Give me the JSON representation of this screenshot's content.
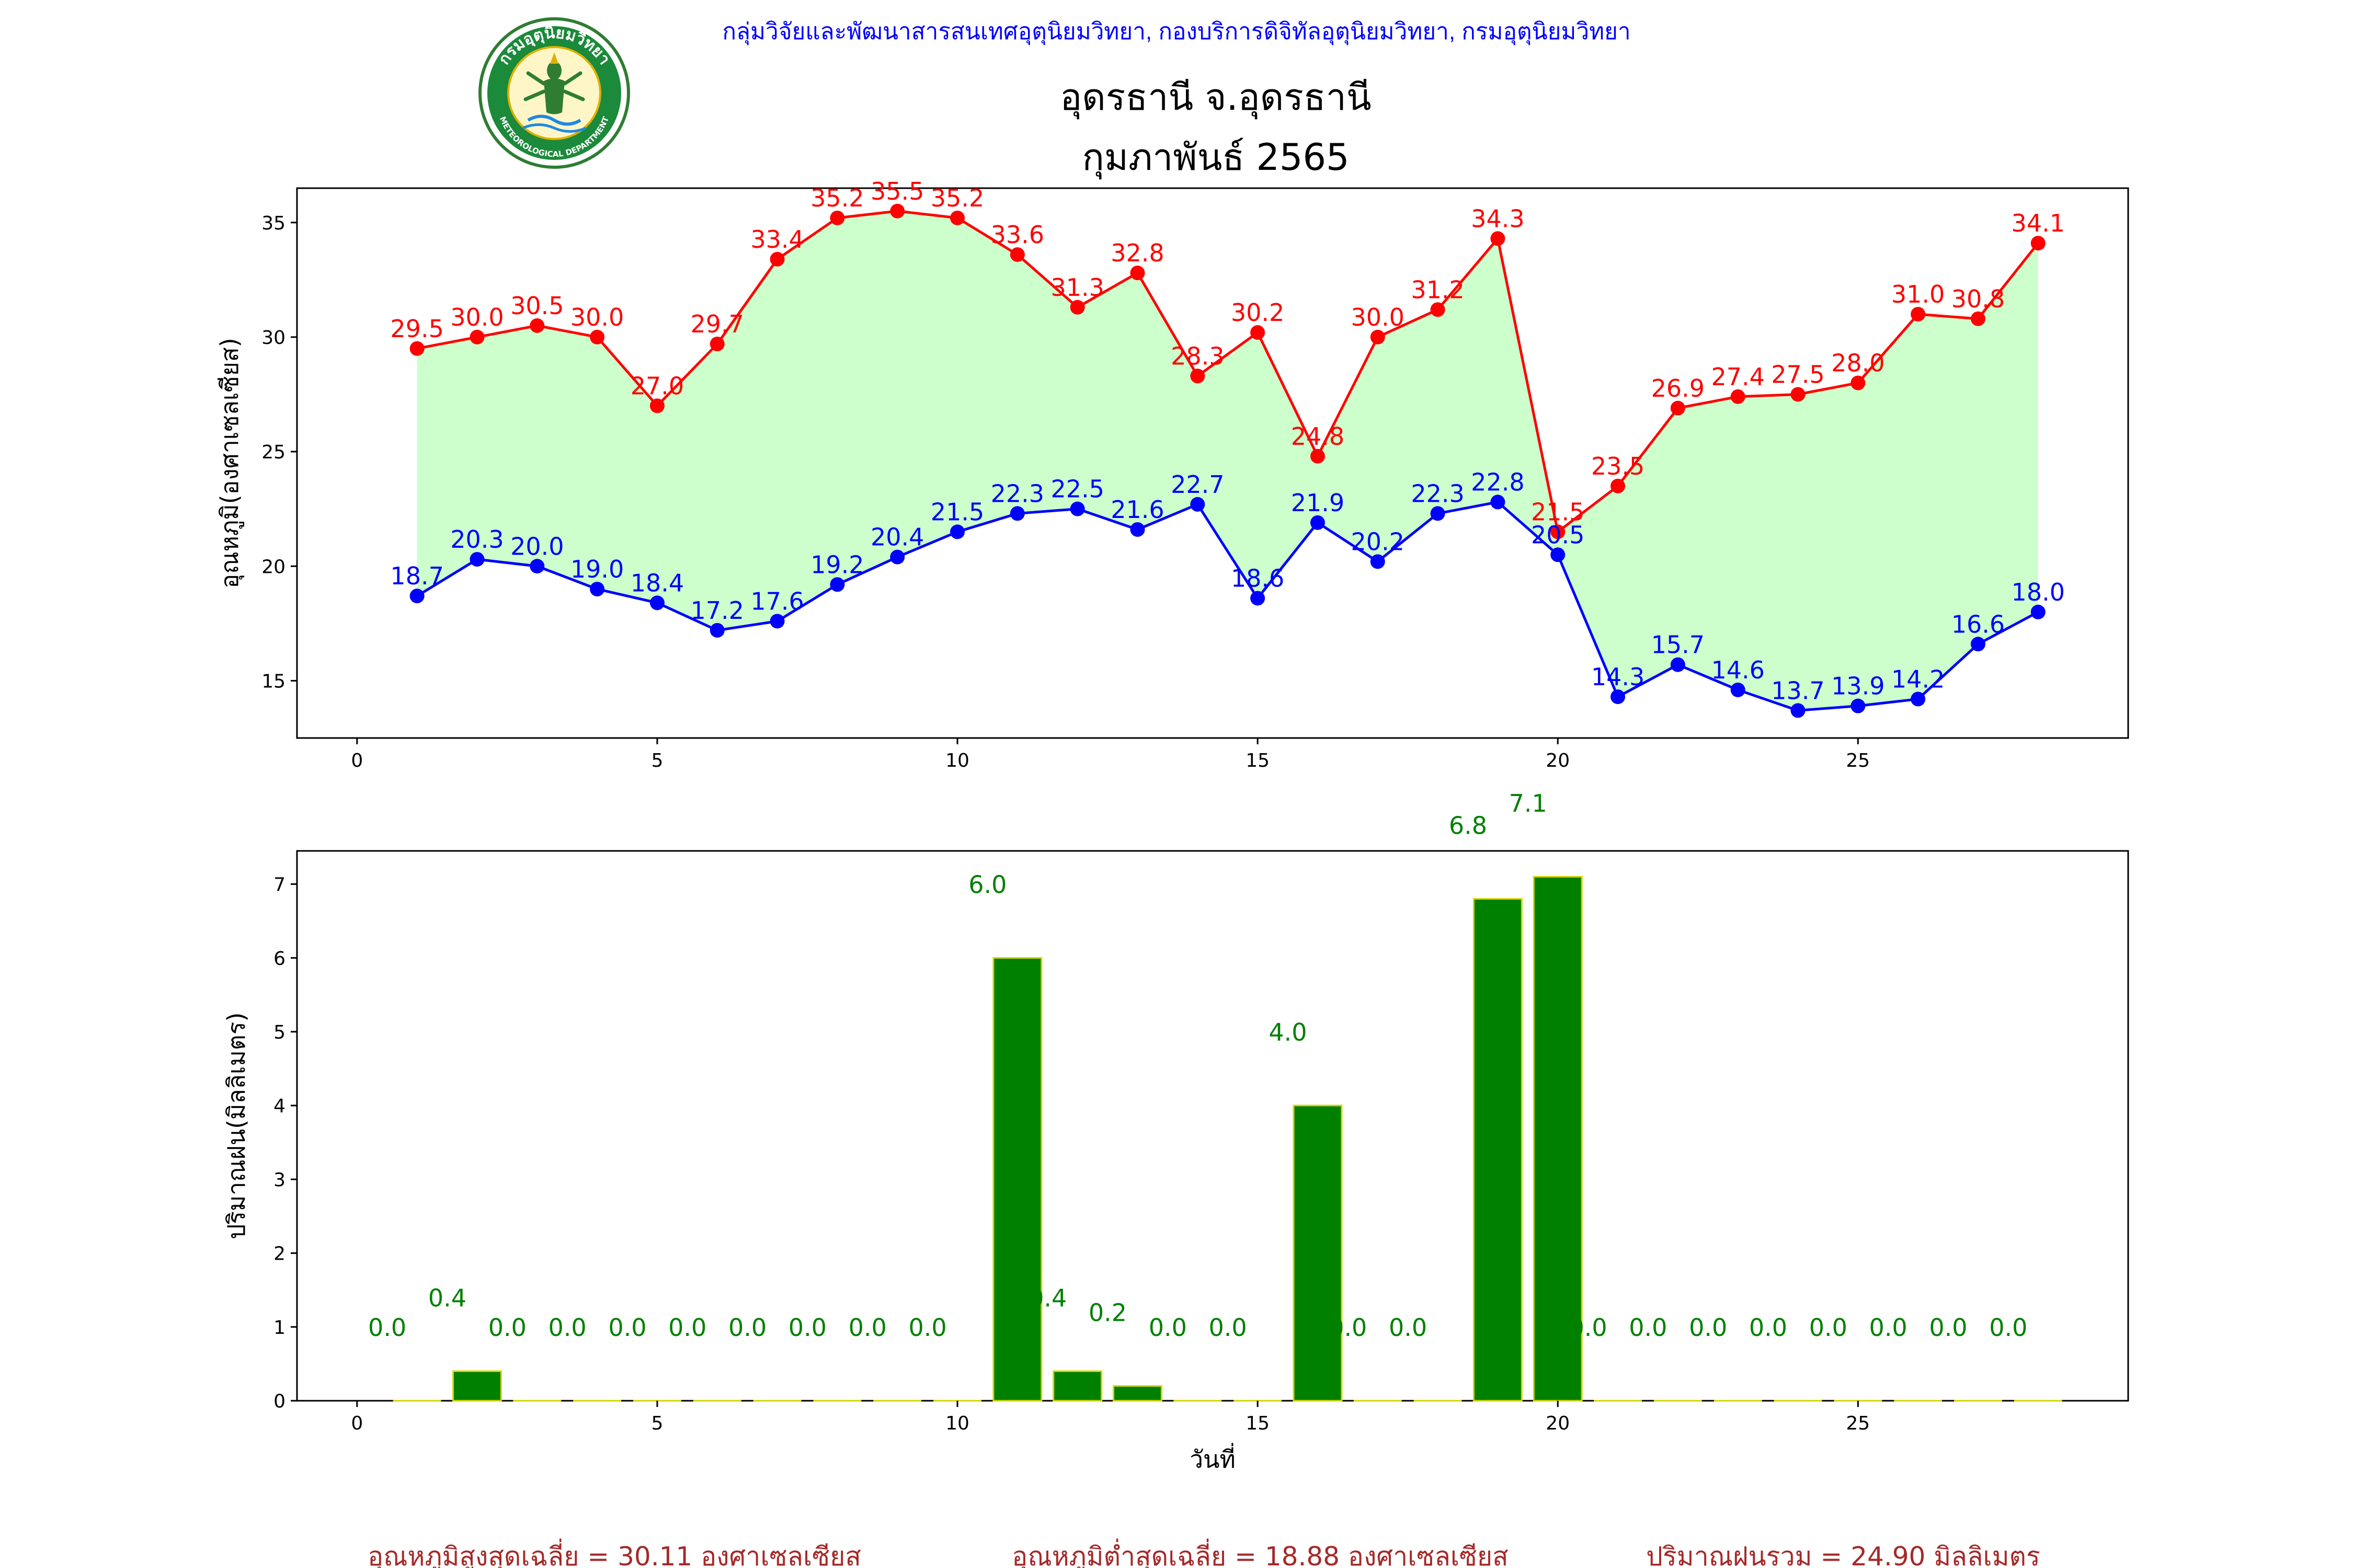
{
  "header": {
    "agency": "กลุ่มวิจัยและพัฒนาสารสนเทศอุตุนิยมวิทยา, กองบริการดิจิทัลอุตุนิยมวิทยา, กรมอุตุนิยมวิทยา",
    "station": "อุดรธานี จ.อุดรธานี",
    "period": "กุมภาพันธ์ 2565",
    "logo_text_top": "กรมอุตุนิยมวิทยา",
    "logo_text_bottom": "METEOROLOGICAL DEPARTMENT"
  },
  "colors": {
    "max_line": "#ff0000",
    "min_line": "#0000ff",
    "fill": "#ccffcc",
    "rain_bar": "#008000",
    "rain_edge": "#d4d400",
    "agency_text": "#0000ff",
    "footer_text": "#a52a2a"
  },
  "chart_data": [
    {
      "type": "line",
      "ylabel": "อุณหภูมิ(องศาเซลเซียส)",
      "xlim": [
        -1,
        29.5
      ],
      "ylim": [
        12.5,
        36.5
      ],
      "xticks": [
        0,
        5,
        10,
        15,
        20,
        25
      ],
      "yticks": [
        15,
        20,
        25,
        30,
        35
      ],
      "x": [
        1,
        2,
        3,
        4,
        5,
        6,
        7,
        8,
        9,
        10,
        11,
        12,
        13,
        14,
        15,
        16,
        17,
        18,
        19,
        20,
        21,
        22,
        23,
        24,
        25,
        26,
        27,
        28
      ],
      "series": [
        {
          "key": "max",
          "values": [
            29.5,
            30.0,
            30.5,
            30.0,
            27.0,
            29.7,
            33.4,
            35.2,
            35.5,
            35.2,
            33.6,
            31.3,
            32.8,
            28.3,
            30.2,
            24.8,
            30.0,
            31.2,
            34.3,
            21.5,
            23.5,
            26.9,
            27.4,
            27.5,
            28.0,
            31.0,
            30.8,
            34.1
          ]
        },
        {
          "key": "min",
          "values": [
            18.7,
            20.3,
            20.0,
            19.0,
            18.4,
            17.2,
            17.6,
            19.2,
            20.4,
            21.5,
            22.3,
            22.5,
            21.6,
            22.7,
            18.6,
            21.9,
            20.2,
            22.3,
            22.8,
            20.5,
            14.3,
            15.7,
            14.6,
            13.7,
            13.9,
            14.2,
            16.6,
            18.0
          ]
        }
      ],
      "fill_between": true,
      "grid": false
    },
    {
      "type": "bar",
      "xlabel": "วันที่",
      "ylabel": "ปริมาณฝน(มิลลิเมตร)",
      "xlim": [
        -1,
        29.5
      ],
      "ylim": [
        0,
        7.45
      ],
      "xticks": [
        0,
        5,
        10,
        15,
        20,
        25
      ],
      "yticks": [
        0,
        1,
        2,
        3,
        4,
        5,
        6,
        7
      ],
      "x": [
        1,
        2,
        3,
        4,
        5,
        6,
        7,
        8,
        9,
        10,
        11,
        12,
        13,
        14,
        15,
        16,
        17,
        18,
        19,
        20,
        21,
        22,
        23,
        24,
        25,
        26,
        27,
        28
      ],
      "values": [
        0.0,
        0.4,
        0.0,
        0.0,
        0.0,
        0.0,
        0.0,
        0.0,
        0.0,
        0.0,
        6.0,
        0.4,
        0.2,
        0.0,
        0.0,
        4.0,
        0.0,
        0.0,
        6.8,
        7.1,
        0.0,
        0.0,
        0.0,
        0.0,
        0.0,
        0.0,
        0.0,
        0.0
      ],
      "grid": false
    }
  ],
  "footer": {
    "avg_max": "อุณหภูมิสูงสุดเฉลี่ย = 30.11 องศาเซลเซียส",
    "avg_min": "อุณหภูมิต่ำสุดเฉลี่ย = 18.88 องศาเซลเซียส",
    "total_rain": "ปริมาณฝนรวม = 24.90 มิลลิเมตร"
  }
}
